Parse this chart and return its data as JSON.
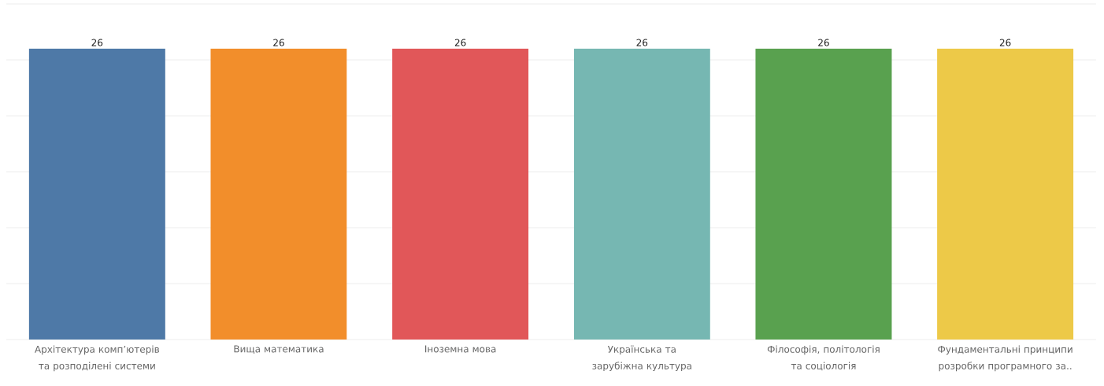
{
  "chart_data": {
    "type": "bar",
    "categories": [
      "Архітектура комп’ютерів та розподілені системи",
      "Вища математика",
      "Іноземна мова",
      "Українська та зарубіжна культура",
      "Філософія, політологія та соціологія",
      "Фундаментальні принципи розробки програмного за.."
    ],
    "values": [
      26,
      26,
      26,
      26,
      26,
      26
    ],
    "colors": [
      "#4e79a7",
      "#f28e2b",
      "#e15759",
      "#76b7b2",
      "#59a14f",
      "#edc948"
    ],
    "value_labels": [
      "26",
      "26",
      "26",
      "26",
      "26",
      "26"
    ],
    "ylim": [
      0,
      30
    ],
    "yticks": [
      {
        "value": 0,
        "label": null
      },
      {
        "value": 5,
        "label": null
      },
      {
        "value": 10,
        "label": null
      },
      {
        "value": 15,
        "label": null
      },
      {
        "value": 20,
        "label": null
      },
      {
        "value": 25,
        "label": null
      },
      {
        "value": 30,
        "label": null
      }
    ],
    "tick_labels": "x",
    "grid": "y"
  }
}
